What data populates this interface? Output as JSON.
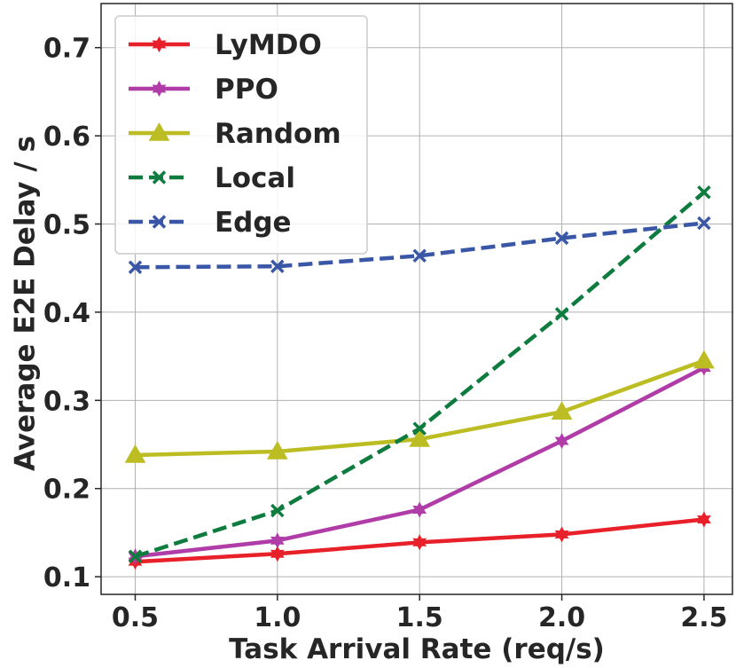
{
  "chart_data": {
    "type": "line",
    "title": "",
    "xlabel": "Task Arrival Rate (req/s)",
    "ylabel": "Average E2E Delay / s",
    "x": [
      0.5,
      1.0,
      1.5,
      2.0,
      2.5
    ],
    "xlim": [
      0.38,
      2.6
    ],
    "ylim": [
      0.08,
      0.75
    ],
    "xticks": [
      "0.5",
      "1.0",
      "1.5",
      "2.0",
      "2.5"
    ],
    "yticks": [
      "0.1",
      "0.2",
      "0.3",
      "0.4",
      "0.5",
      "0.6",
      "0.7"
    ],
    "grid": true,
    "legend_position": "top-left",
    "series": [
      {
        "name": "LyMDO",
        "values": [
          0.117,
          0.126,
          0.139,
          0.148,
          0.165
        ],
        "color": "#e8202a",
        "marker": "star",
        "dash": "solid"
      },
      {
        "name": "PPO",
        "values": [
          0.123,
          0.141,
          0.176,
          0.254,
          0.337
        ],
        "color": "#b03ca8",
        "marker": "star",
        "dash": "solid"
      },
      {
        "name": "Random",
        "values": [
          0.238,
          0.242,
          0.256,
          0.287,
          0.345
        ],
        "color": "#bcbd22",
        "marker": "triangle",
        "dash": "solid"
      },
      {
        "name": "Local",
        "values": [
          0.123,
          0.175,
          0.268,
          0.398,
          0.536
        ],
        "color": "#0e7c3e",
        "marker": "x",
        "dash": "dashed"
      },
      {
        "name": "Edge",
        "values": [
          0.451,
          0.452,
          0.464,
          0.484,
          0.501
        ],
        "color": "#3a57a7",
        "marker": "x",
        "dash": "dashed"
      }
    ]
  }
}
